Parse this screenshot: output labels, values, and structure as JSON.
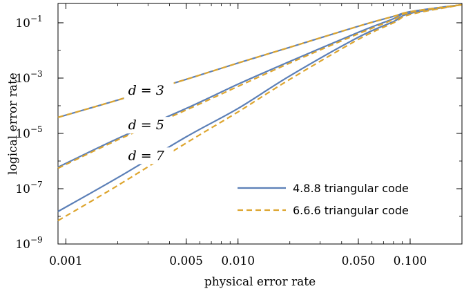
{
  "chart_data": {
    "type": "line",
    "xlabel": "physical error rate",
    "ylabel": "logical error rate",
    "xscale": "log",
    "yscale": "log",
    "xlim": [
      0.0009,
      0.2
    ],
    "ylim": [
      1e-09,
      0.5
    ],
    "x_ticks": [
      {
        "value": 0.001,
        "label": "0.001"
      },
      {
        "value": 0.005,
        "label": "0.005"
      },
      {
        "value": 0.01,
        "label": "0.010"
      },
      {
        "value": 0.05,
        "label": "0.050"
      },
      {
        "value": 0.1,
        "label": "0.100"
      }
    ],
    "y_ticks": [
      {
        "value": 0.1,
        "base": "10",
        "exp": "−1"
      },
      {
        "value": 0.001,
        "base": "10",
        "exp": "−3"
      },
      {
        "value": 1e-05,
        "base": "10",
        "exp": "−5"
      },
      {
        "value": 1e-07,
        "base": "10",
        "exp": "−7"
      },
      {
        "value": 1e-09,
        "base": "10",
        "exp": "−9"
      }
    ],
    "grid": false,
    "legend_position": "bottom-right",
    "colors": {
      "blue": "#5b7fb7",
      "orange": "#dda52e"
    },
    "annotations": [
      {
        "text": "d = 3",
        "x": 0.0023,
        "y": 0.00025
      },
      {
        "text": "d = 5",
        "x": 0.0023,
        "y": 1.4e-05
      },
      {
        "text": "d = 7",
        "x": 0.0023,
        "y": 1.1e-06
      }
    ],
    "series": [
      {
        "name": "4.8.8 triangular code",
        "style": "solid",
        "color": "#5b7fb7",
        "curves": [
          {
            "distance": 3,
            "points": [
              [
                0.0009,
                3.8e-05
              ],
              [
                0.002,
                0.00016
              ],
              [
                0.005,
                0.0009
              ],
              [
                0.01,
                0.0035
              ],
              [
                0.02,
                0.013
              ],
              [
                0.05,
                0.075
              ],
              [
                0.08,
                0.17
              ],
              [
                0.1,
                0.25
              ],
              [
                0.2,
                0.45
              ]
            ]
          },
          {
            "distance": 5,
            "points": [
              [
                0.0009,
                6e-07
              ],
              [
                0.002,
                6.5e-06
              ],
              [
                0.005,
                8e-05
              ],
              [
                0.01,
                0.0006
              ],
              [
                0.02,
                0.004
              ],
              [
                0.05,
                0.045
              ],
              [
                0.08,
                0.14
              ],
              [
                0.1,
                0.25
              ],
              [
                0.2,
                0.45
              ]
            ]
          },
          {
            "distance": 7,
            "points": [
              [
                0.0009,
                1.5e-08
              ],
              [
                0.002,
                2.5e-07
              ],
              [
                0.005,
                7.5e-06
              ],
              [
                0.01,
                8e-05
              ],
              [
                0.02,
                0.0012
              ],
              [
                0.05,
                0.03
              ],
              [
                0.08,
                0.11
              ],
              [
                0.1,
                0.22
              ],
              [
                0.2,
                0.45
              ]
            ]
          }
        ]
      },
      {
        "name": "6.6.6 triangular code",
        "style": "dashed",
        "color": "#dda52e",
        "curves": [
          {
            "distance": 3,
            "points": [
              [
                0.0009,
                3.8e-05
              ],
              [
                0.002,
                0.00016
              ],
              [
                0.005,
                0.0009
              ],
              [
                0.01,
                0.0035
              ],
              [
                0.02,
                0.013
              ],
              [
                0.05,
                0.075
              ],
              [
                0.08,
                0.17
              ],
              [
                0.1,
                0.25
              ],
              [
                0.2,
                0.45
              ]
            ]
          },
          {
            "distance": 5,
            "points": [
              [
                0.0009,
                5.5e-07
              ],
              [
                0.002,
                5.8e-06
              ],
              [
                0.005,
                7e-05
              ],
              [
                0.01,
                0.0005
              ],
              [
                0.02,
                0.0035
              ],
              [
                0.05,
                0.04
              ],
              [
                0.08,
                0.13
              ],
              [
                0.1,
                0.24
              ],
              [
                0.2,
                0.45
              ]
            ]
          },
          {
            "distance": 7,
            "points": [
              [
                0.0009,
                7e-09
              ],
              [
                0.002,
                1.3e-07
              ],
              [
                0.005,
                4.5e-06
              ],
              [
                0.01,
                6e-05
              ],
              [
                0.02,
                0.0009
              ],
              [
                0.05,
                0.025
              ],
              [
                0.08,
                0.1
              ],
              [
                0.1,
                0.2
              ],
              [
                0.2,
                0.45
              ]
            ]
          }
        ]
      }
    ]
  }
}
